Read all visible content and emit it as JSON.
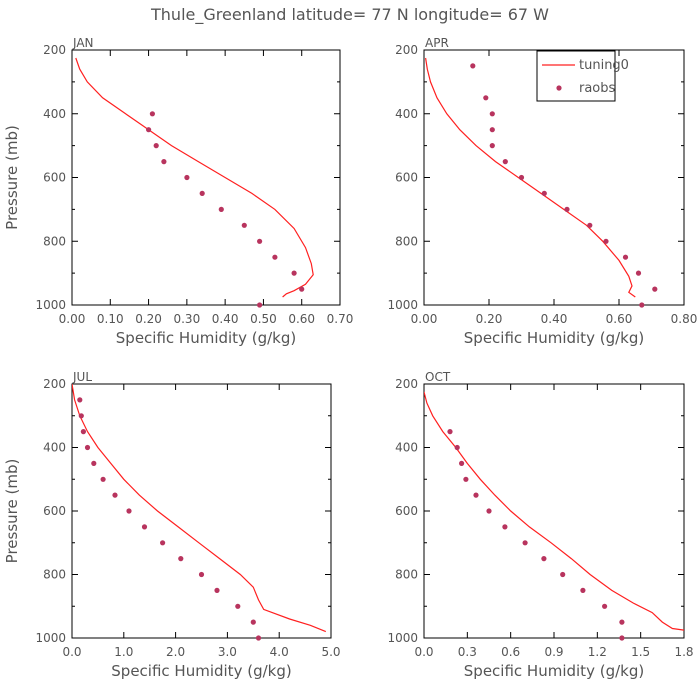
{
  "figure_title": "Thule_Greenland  latitude= 77 N longitude= 67 W",
  "colors": {
    "model_line": "#ff2020",
    "raobs_points": "#b8345e",
    "axis": "#000000",
    "text": "#555555"
  },
  "legend": {
    "placement": "top-right (in APR panel)",
    "model_label": "tuning0",
    "obs_label": "raobs"
  },
  "chart_data": [
    {
      "panel": "JAN",
      "type": "line",
      "title": "JAN",
      "xlabel": "Specific Humidity (g/kg)",
      "ylabel": "Pressure (mb)",
      "xlim": [
        0,
        0.7
      ],
      "ylim": [
        1000,
        200
      ],
      "xticks": [
        "0.00",
        "0.10",
        "0.20",
        "0.30",
        "0.40",
        "0.50",
        "0.60",
        "0.70"
      ],
      "yticks": [
        "200",
        "400",
        "600",
        "800",
        "1000"
      ],
      "series": [
        {
          "name": "tuning0",
          "kind": "line",
          "points": [
            [
              0.01,
              225
            ],
            [
              0.02,
              260
            ],
            [
              0.04,
              300
            ],
            [
              0.08,
              350
            ],
            [
              0.14,
              400
            ],
            [
              0.2,
              450
            ],
            [
              0.26,
              500
            ],
            [
              0.33,
              550
            ],
            [
              0.4,
              600
            ],
            [
              0.47,
              650
            ],
            [
              0.53,
              700
            ],
            [
              0.58,
              760
            ],
            [
              0.61,
              820
            ],
            [
              0.625,
              870
            ],
            [
              0.63,
              905
            ],
            [
              0.61,
              935
            ],
            [
              0.58,
              955
            ],
            [
              0.56,
              965
            ],
            [
              0.55,
              975
            ]
          ]
        },
        {
          "name": "raobs",
          "kind": "scatter",
          "points": [
            [
              0.21,
              400
            ],
            [
              0.2,
              450
            ],
            [
              0.22,
              500
            ],
            [
              0.24,
              550
            ],
            [
              0.3,
              600
            ],
            [
              0.34,
              650
            ],
            [
              0.39,
              700
            ],
            [
              0.45,
              750
            ],
            [
              0.49,
              800
            ],
            [
              0.53,
              850
            ],
            [
              0.58,
              900
            ],
            [
              0.6,
              950
            ],
            [
              0.49,
              1000
            ]
          ]
        }
      ]
    },
    {
      "panel": "APR",
      "type": "line",
      "title": "APR",
      "xlabel": "Specific Humidity (g/kg)",
      "ylabel": "",
      "xlim": [
        0,
        0.8
      ],
      "ylim": [
        1000,
        200
      ],
      "xticks": [
        "0.00",
        "0.20",
        "0.40",
        "0.60",
        "0.80"
      ],
      "yticks": [
        "200",
        "400",
        "600",
        "800",
        "1000"
      ],
      "series": [
        {
          "name": "tuning0",
          "kind": "line",
          "points": [
            [
              0.005,
              225
            ],
            [
              0.01,
              260
            ],
            [
              0.02,
              300
            ],
            [
              0.04,
              350
            ],
            [
              0.07,
              400
            ],
            [
              0.11,
              450
            ],
            [
              0.16,
              500
            ],
            [
              0.22,
              550
            ],
            [
              0.29,
              600
            ],
            [
              0.36,
              650
            ],
            [
              0.43,
              700
            ],
            [
              0.5,
              750
            ],
            [
              0.55,
              800
            ],
            [
              0.6,
              860
            ],
            [
              0.63,
              910
            ],
            [
              0.64,
              940
            ],
            [
              0.63,
              960
            ],
            [
              0.65,
              975
            ]
          ]
        },
        {
          "name": "raobs",
          "kind": "scatter",
          "points": [
            [
              0.15,
              250
            ],
            [
              0.19,
              350
            ],
            [
              0.21,
              400
            ],
            [
              0.21,
              450
            ],
            [
              0.21,
              500
            ],
            [
              0.25,
              550
            ],
            [
              0.3,
              600
            ],
            [
              0.37,
              650
            ],
            [
              0.44,
              700
            ],
            [
              0.51,
              750
            ],
            [
              0.56,
              800
            ],
            [
              0.62,
              850
            ],
            [
              0.66,
              900
            ],
            [
              0.71,
              950
            ],
            [
              0.67,
              1000
            ]
          ]
        }
      ]
    },
    {
      "panel": "JUL",
      "type": "line",
      "title": "JUL",
      "xlabel": "Specific Humidity (g/kg)",
      "ylabel": "Pressure (mb)",
      "xlim": [
        0,
        5
      ],
      "ylim": [
        1000,
        200
      ],
      "xticks": [
        "0.0",
        "1.0",
        "2.0",
        "3.0",
        "4.0",
        "5.0"
      ],
      "yticks": [
        "200",
        "400",
        "600",
        "800",
        "1000"
      ],
      "series": [
        {
          "name": "tuning0",
          "kind": "line",
          "points": [
            [
              0.0,
              200
            ],
            [
              0.05,
              250
            ],
            [
              0.15,
              300
            ],
            [
              0.3,
              350
            ],
            [
              0.5,
              400
            ],
            [
              0.75,
              450
            ],
            [
              1.0,
              500
            ],
            [
              1.3,
              550
            ],
            [
              1.65,
              600
            ],
            [
              2.05,
              650
            ],
            [
              2.45,
              700
            ],
            [
              2.85,
              750
            ],
            [
              3.25,
              800
            ],
            [
              3.5,
              840
            ],
            [
              3.6,
              880
            ],
            [
              3.7,
              910
            ],
            [
              4.2,
              940
            ],
            [
              4.6,
              960
            ],
            [
              4.9,
              980
            ]
          ]
        },
        {
          "name": "raobs",
          "kind": "scatter",
          "points": [
            [
              0.15,
              250
            ],
            [
              0.18,
              300
            ],
            [
              0.22,
              350
            ],
            [
              0.3,
              400
            ],
            [
              0.42,
              450
            ],
            [
              0.6,
              500
            ],
            [
              0.83,
              550
            ],
            [
              1.1,
              600
            ],
            [
              1.4,
              650
            ],
            [
              1.75,
              700
            ],
            [
              2.1,
              750
            ],
            [
              2.5,
              800
            ],
            [
              2.8,
              850
            ],
            [
              3.2,
              900
            ],
            [
              3.5,
              950
            ],
            [
              3.6,
              1000
            ]
          ]
        }
      ]
    },
    {
      "panel": "OCT",
      "type": "line",
      "title": "OCT",
      "xlabel": "Specific Humidity (g/kg)",
      "ylabel": "",
      "xlim": [
        0,
        1.8
      ],
      "ylim": [
        1000,
        200
      ],
      "xticks": [
        "0.0",
        "0.3",
        "0.6",
        "0.9",
        "1.2",
        "1.5",
        "1.8"
      ],
      "yticks": [
        "200",
        "400",
        "600",
        "800",
        "1000"
      ],
      "series": [
        {
          "name": "tuning0",
          "kind": "line",
          "points": [
            [
              0.0,
              225
            ],
            [
              0.02,
              260
            ],
            [
              0.06,
              300
            ],
            [
              0.13,
              350
            ],
            [
              0.22,
              400
            ],
            [
              0.3,
              450
            ],
            [
              0.39,
              500
            ],
            [
              0.49,
              550
            ],
            [
              0.6,
              600
            ],
            [
              0.73,
              650
            ],
            [
              0.88,
              700
            ],
            [
              1.02,
              750
            ],
            [
              1.15,
              800
            ],
            [
              1.3,
              850
            ],
            [
              1.45,
              890
            ],
            [
              1.58,
              920
            ],
            [
              1.65,
              950
            ],
            [
              1.72,
              970
            ],
            [
              1.8,
              975
            ]
          ]
        },
        {
          "name": "raobs",
          "kind": "scatter",
          "points": [
            [
              0.18,
              350
            ],
            [
              0.23,
              400
            ],
            [
              0.26,
              450
            ],
            [
              0.29,
              500
            ],
            [
              0.36,
              550
            ],
            [
              0.45,
              600
            ],
            [
              0.56,
              650
            ],
            [
              0.7,
              700
            ],
            [
              0.83,
              750
            ],
            [
              0.96,
              800
            ],
            [
              1.1,
              850
            ],
            [
              1.25,
              900
            ],
            [
              1.37,
              950
            ],
            [
              1.37,
              1000
            ]
          ]
        }
      ]
    }
  ]
}
